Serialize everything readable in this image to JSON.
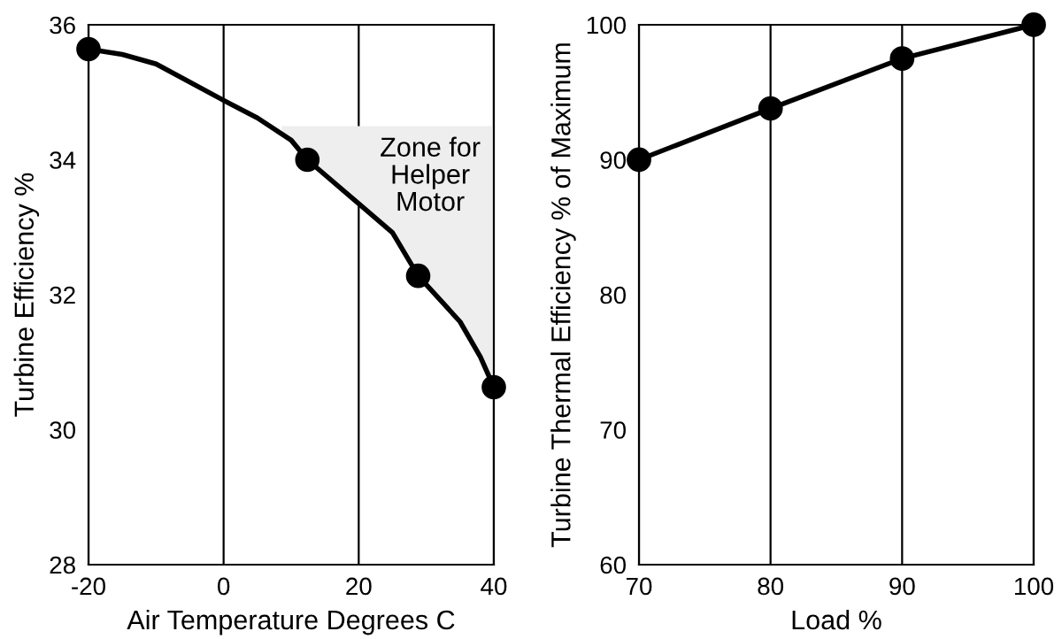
{
  "chart_data": [
    {
      "type": "scatter",
      "xlabel": "Air Temperature Degrees C",
      "ylabel": "Turbine Efficiency %",
      "xlim": [
        -20,
        40
      ],
      "ylim": [
        28,
        36
      ],
      "xticks": [
        -20,
        0,
        20,
        40
      ],
      "yticks": [
        28,
        30,
        32,
        34,
        36
      ],
      "grid": "x",
      "series": [
        {
          "type": "area",
          "color": "#eeeeee",
          "x": [
            8.6,
            10,
            12.4,
            20,
            25,
            28.8,
            35,
            38,
            40
          ],
          "values": [
            34.5,
            34.5,
            34.5,
            34.5,
            34.5,
            34.5,
            34.5,
            34.5,
            34.5
          ]
        },
        {
          "type": "line",
          "color": "#000000",
          "marker": "none",
          "x": [
            -20,
            -15,
            -10,
            0,
            5,
            10,
            12.4,
            20,
            25,
            28.8,
            35,
            38,
            40
          ],
          "values": [
            35.64,
            35.56,
            35.42,
            34.88,
            34.62,
            34.29,
            34.0,
            33.35,
            32.92,
            32.28,
            31.6,
            31.08,
            30.63
          ]
        },
        {
          "type": "scatter",
          "color": "#000000",
          "marker": "circle",
          "x": [
            -20,
            12.4,
            28.8,
            40
          ],
          "values": [
            35.64,
            34.0,
            32.28,
            30.63
          ]
        }
      ],
      "annotations": [
        "Zone for\nHelper\nMotor"
      ]
    },
    {
      "type": "line",
      "xlabel": "Load %",
      "ylabel": "Turbine Thermal Efficiency % of Maximum",
      "xlim": [
        70,
        100
      ],
      "ylim": [
        60,
        100
      ],
      "xticks": [
        70,
        80,
        90,
        100
      ],
      "yticks": [
        60,
        70,
        80,
        90,
        100
      ],
      "grid": "x",
      "marker": "circle",
      "series": [
        {
          "color": "#000000",
          "x": [
            70,
            80,
            90,
            100
          ],
          "values": [
            90,
            93.8,
            97.5,
            100
          ]
        }
      ]
    }
  ]
}
